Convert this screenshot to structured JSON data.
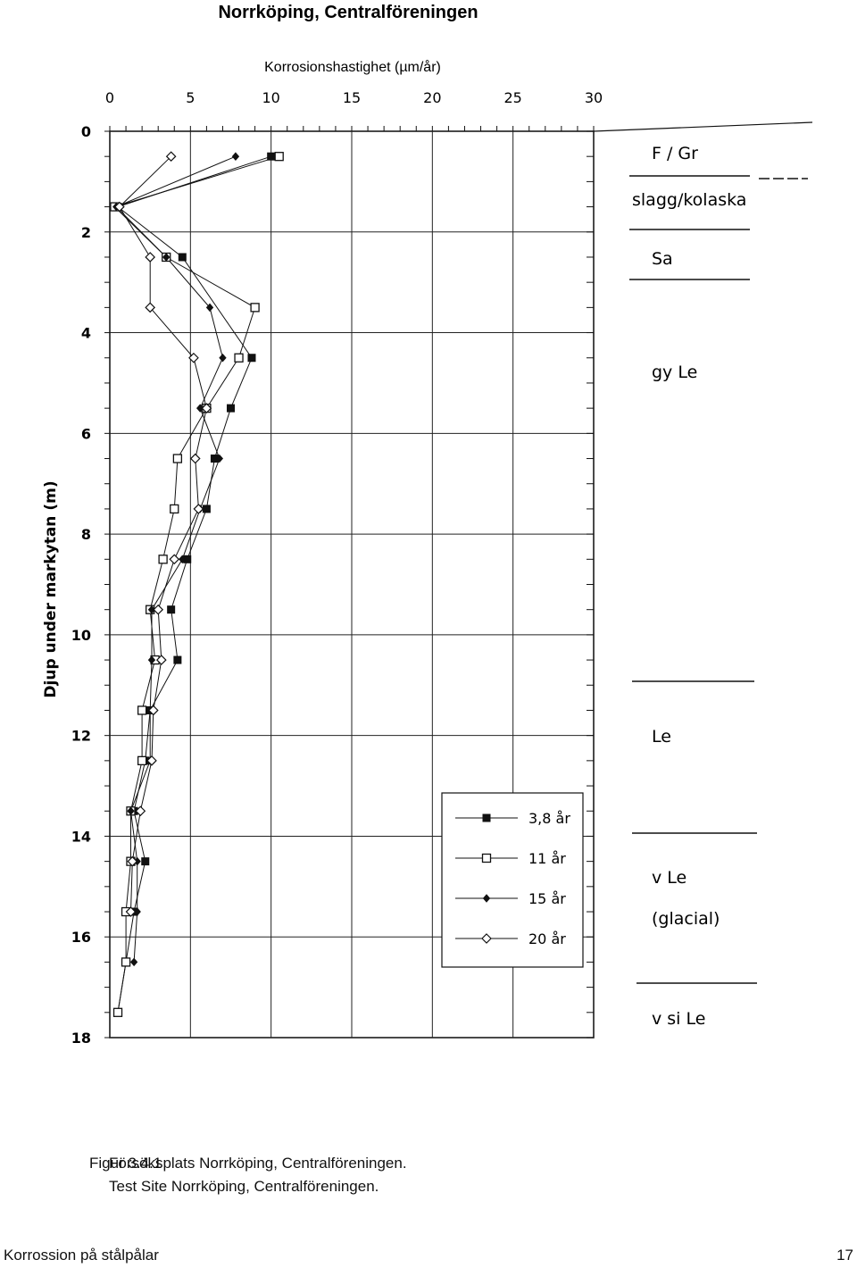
{
  "chart_data": {
    "type": "line",
    "title": "Norrköping, Centralföreningen",
    "xlabel": "Korrosionshastighet (µm/år)",
    "ylabel": "Djup under markytan (m)",
    "xlim": [
      0,
      30
    ],
    "ylim": [
      0,
      18
    ],
    "y_inverted": true,
    "x_ticks": [
      0,
      5,
      10,
      15,
      20,
      25,
      30
    ],
    "y_ticks": [
      0,
      2,
      4,
      6,
      8,
      10,
      12,
      14,
      16,
      18
    ],
    "grid": true,
    "legend_position": "bottom-right",
    "series": [
      {
        "name": "3,8 år",
        "marker": "filled-square",
        "points": [
          [
            10,
            0.5
          ],
          [
            0.5,
            1.5
          ],
          [
            4.5,
            2.5
          ],
          [
            8.8,
            4.5
          ],
          [
            7.5,
            5.5
          ],
          [
            6.5,
            6.5
          ],
          [
            6,
            7.5
          ],
          [
            4.8,
            8.5
          ],
          [
            3.8,
            9.5
          ],
          [
            4.2,
            10.5
          ],
          [
            2.5,
            11.5
          ],
          [
            2.2,
            12.5
          ],
          [
            1.5,
            13.5
          ],
          [
            2.2,
            14.5
          ],
          [
            1.5,
            15.5
          ],
          [
            1,
            16.5
          ],
          [
            0.5,
            17.5
          ]
        ]
      },
      {
        "name": "11 år",
        "marker": "open-square",
        "points": [
          [
            10.5,
            0.5
          ],
          [
            0.3,
            1.5
          ],
          [
            3.5,
            2.5
          ],
          [
            9,
            3.5
          ],
          [
            8,
            4.5
          ],
          [
            6,
            5.5
          ],
          [
            4.2,
            6.5
          ],
          [
            4,
            7.5
          ],
          [
            3.3,
            8.5
          ],
          [
            2.5,
            9.5
          ],
          [
            2.8,
            10.5
          ],
          [
            2,
            11.5
          ],
          [
            2,
            12.5
          ],
          [
            1.3,
            13.5
          ],
          [
            1.3,
            14.5
          ],
          [
            1,
            15.5
          ],
          [
            1,
            16.5
          ],
          [
            0.5,
            17.5
          ]
        ]
      },
      {
        "name": "15 år",
        "marker": "filled-diamond",
        "points": [
          [
            7.8,
            0.5
          ],
          [
            0.4,
            1.5
          ],
          [
            3.5,
            2.5
          ],
          [
            6.2,
            3.5
          ],
          [
            7,
            4.5
          ],
          [
            5.6,
            5.5
          ],
          [
            6.8,
            6.5
          ],
          [
            5.6,
            7.5
          ],
          [
            4.5,
            8.5
          ],
          [
            2.6,
            9.5
          ],
          [
            2.6,
            10.5
          ],
          [
            2.5,
            11.5
          ],
          [
            2.5,
            12.5
          ],
          [
            1.3,
            13.5
          ],
          [
            1.7,
            14.5
          ],
          [
            1.7,
            15.5
          ],
          [
            1.5,
            16.5
          ]
        ]
      },
      {
        "name": "20 år",
        "marker": "open-diamond",
        "points": [
          [
            3.8,
            0.5
          ],
          [
            0.6,
            1.5
          ],
          [
            2.5,
            2.5
          ],
          [
            2.5,
            3.5
          ],
          [
            5.2,
            4.5
          ],
          [
            6,
            5.5
          ],
          [
            5.3,
            6.5
          ],
          [
            5.5,
            7.5
          ],
          [
            4,
            8.5
          ],
          [
            3,
            9.5
          ],
          [
            3.2,
            10.5
          ],
          [
            2.7,
            11.5
          ],
          [
            2.6,
            12.5
          ],
          [
            1.9,
            13.5
          ],
          [
            1.4,
            14.5
          ],
          [
            1.3,
            15.5
          ]
        ]
      }
    ],
    "soil_layers": [
      {
        "label": "F / Gr"
      },
      {
        "label": "slagg/kolaska"
      },
      {
        "label": "Sa"
      },
      {
        "label": "gy Le"
      },
      {
        "label": "Le"
      },
      {
        "label": "v Le"
      },
      {
        "label": "(glacial)"
      },
      {
        "label": "v si Le"
      }
    ]
  },
  "caption": {
    "label": "Figur 3.4.1",
    "line1": "Försöksplats Norrköping, Centralföreningen.",
    "line2": "Test Site Norrköping, Centralföreningen."
  },
  "footer": {
    "left": "Korrossion på stålpålar",
    "right": "17"
  }
}
